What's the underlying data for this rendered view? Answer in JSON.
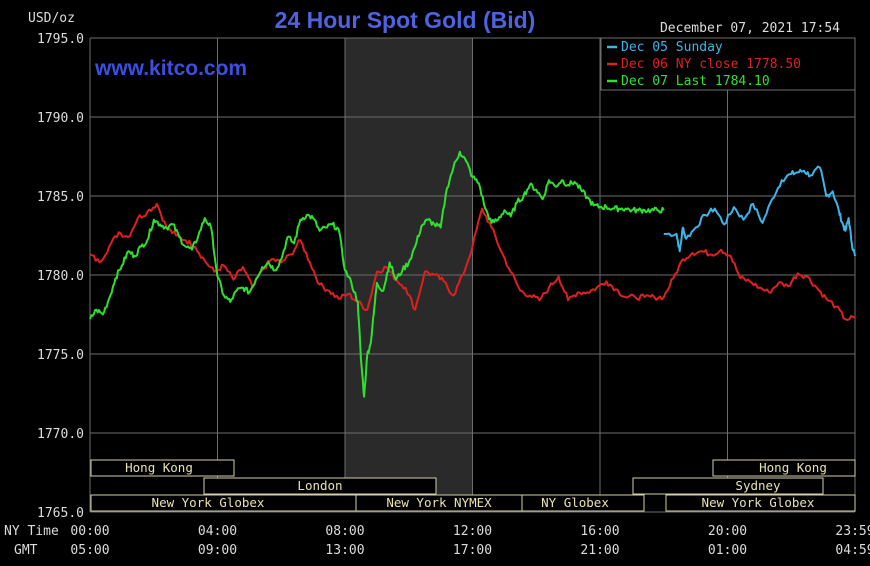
{
  "header": {
    "title": "24 Hour Spot Gold (Bid)",
    "units": "USD/oz",
    "timestamp": "December 07, 2021 17:54",
    "watermark": "www.kitco.com"
  },
  "legend": [
    {
      "label": "Dec 05 Sunday",
      "color": "#3bb5ea"
    },
    {
      "label": "Dec 06 NY close 1778.50",
      "color": "#e01f1f"
    },
    {
      "label": "Dec 07 Last 1784.10",
      "color": "#2fe02f"
    }
  ],
  "footer": {
    "ny_time_label": "NY Time",
    "gmt_label": "GMT",
    "ny_times": [
      "00:00",
      "04:00",
      "08:00",
      "12:00",
      "16:00",
      "20:00",
      "23:59"
    ],
    "gmt_times": [
      "05:00",
      "09:00",
      "13:00",
      "17:00",
      "21:00",
      "01:00",
      "04:59"
    ]
  },
  "sessions": {
    "hong_kong_left": "Hong Kong",
    "london": "London",
    "ny_globex_left": "New York Globex",
    "ny_nymex": "New York NYMEX",
    "ny_globex_mid": "NY Globex",
    "hong_kong_right": "Hong Kong",
    "sydney": "Sydney",
    "ny_globex_right": "New York Globex"
  },
  "colors": {
    "background": "#000000",
    "grid": "#6e6e6e",
    "title": "#4f63e0",
    "watermark": "#3e4fe0",
    "nymex_shade": "#2a2a2a",
    "session_box": "#d4cfa8"
  },
  "chart_data": {
    "type": "line",
    "title": "24 Hour Spot Gold (Bid)",
    "ylabel": "USD/oz",
    "xlabel": "NY Time",
    "ylim": [
      1765.0,
      1795.0
    ],
    "yticks": [
      "1765.0",
      "1770.0",
      "1775.0",
      "1780.0",
      "1785.0",
      "1790.0",
      "1795.0"
    ],
    "xlim": [
      0,
      24
    ],
    "xticks": [
      0,
      4,
      8,
      12,
      16,
      20,
      24
    ],
    "grid": true,
    "legend_position": "top-right",
    "shaded_region_hours": [
      8.0,
      12.0
    ],
    "series": [
      {
        "name": "Dec 05 Sunday",
        "color": "#3bb5ea",
        "x": [
          18.0,
          18.4,
          18.5,
          18.6,
          18.7,
          19.0,
          19.3,
          19.6,
          19.9,
          20.2,
          20.5,
          20.8,
          21.1,
          21.4,
          21.7,
          22.0,
          22.2,
          22.4,
          22.6,
          22.9,
          23.1,
          23.3,
          23.5,
          23.6,
          23.7,
          23.8,
          23.9,
          24.0
        ],
        "y": [
          1782.6,
          1782.6,
          1781.5,
          1783.0,
          1782.3,
          1783.0,
          1783.8,
          1784.2,
          1783.2,
          1784.3,
          1783.5,
          1784.5,
          1783.3,
          1784.8,
          1786.0,
          1786.4,
          1786.5,
          1786.6,
          1786.3,
          1786.8,
          1785.0,
          1785.3,
          1784.0,
          1783.3,
          1782.8,
          1783.6,
          1782.0,
          1781.2
        ]
      },
      {
        "name": "Dec 06 NY close 1778.50",
        "color": "#e01f1f",
        "x": [
          0.0,
          0.3,
          0.6,
          0.9,
          1.2,
          1.5,
          1.8,
          2.1,
          2.4,
          2.7,
          3.0,
          3.3,
          3.6,
          3.9,
          4.2,
          4.5,
          4.8,
          5.1,
          5.4,
          5.7,
          6.0,
          6.3,
          6.6,
          6.9,
          7.2,
          7.5,
          7.8,
          8.1,
          8.4,
          8.7,
          9.0,
          9.3,
          9.6,
          9.9,
          10.2,
          10.5,
          10.8,
          11.1,
          11.4,
          11.7,
          12.0,
          12.3,
          12.6,
          12.9,
          13.2,
          13.5,
          13.8,
          14.1,
          14.4,
          14.7,
          15.0,
          15.3,
          15.6,
          15.9,
          16.2,
          16.5,
          16.8,
          17.1,
          17.4,
          17.7,
          18.0,
          18.3,
          18.6,
          18.9,
          19.2,
          19.5,
          19.8,
          20.1,
          20.4,
          20.7,
          21.0,
          21.3,
          21.6,
          21.9,
          22.2,
          22.5,
          22.8,
          23.1,
          23.4,
          23.7,
          24.0
        ],
        "y": [
          1781.3,
          1780.8,
          1781.8,
          1782.7,
          1782.4,
          1783.6,
          1784.0,
          1784.5,
          1783.0,
          1782.5,
          1782.2,
          1781.8,
          1780.9,
          1780.2,
          1780.6,
          1779.7,
          1780.5,
          1779.2,
          1780.3,
          1781.0,
          1780.8,
          1781.3,
          1782.2,
          1780.8,
          1779.4,
          1779.0,
          1778.5,
          1778.8,
          1778.3,
          1777.8,
          1780.2,
          1780.5,
          1779.7,
          1779.2,
          1777.8,
          1780.2,
          1780.0,
          1779.6,
          1778.7,
          1780.0,
          1781.8,
          1784.2,
          1783.0,
          1781.5,
          1780.2,
          1779.0,
          1778.7,
          1778.4,
          1779.2,
          1779.9,
          1778.4,
          1778.9,
          1778.9,
          1779.2,
          1779.6,
          1779.1,
          1778.6,
          1778.6,
          1778.6,
          1778.6,
          1778.6,
          1779.8,
          1781.0,
          1781.4,
          1781.5,
          1781.3,
          1781.6,
          1781.2,
          1779.8,
          1779.6,
          1779.2,
          1778.9,
          1779.5,
          1779.3,
          1780.1,
          1779.9,
          1779.2,
          1778.5,
          1778.0,
          1777.2,
          1777.3
        ]
      },
      {
        "name": "Dec 07 Last 1784.10",
        "color": "#2fe02f",
        "x": [
          0.0,
          0.2,
          0.4,
          0.6,
          0.8,
          1.0,
          1.2,
          1.4,
          1.6,
          1.8,
          2.0,
          2.2,
          2.4,
          2.6,
          2.8,
          3.0,
          3.2,
          3.4,
          3.6,
          3.8,
          4.0,
          4.2,
          4.4,
          4.6,
          4.8,
          5.0,
          5.2,
          5.4,
          5.6,
          5.8,
          6.0,
          6.2,
          6.4,
          6.6,
          6.8,
          7.0,
          7.2,
          7.4,
          7.6,
          7.8,
          8.0,
          8.2,
          8.4,
          8.5,
          8.6,
          8.7,
          8.8,
          8.9,
          9.0,
          9.2,
          9.4,
          9.6,
          9.8,
          10.0,
          10.2,
          10.4,
          10.6,
          10.8,
          11.0,
          11.2,
          11.4,
          11.6,
          11.8,
          12.0,
          12.2,
          12.4,
          12.6,
          12.8,
          13.0,
          13.2,
          13.4,
          13.6,
          13.8,
          14.0,
          14.2,
          14.4,
          14.6,
          14.8,
          15.0,
          15.2,
          15.4,
          15.6,
          15.8,
          16.0,
          16.2,
          16.4,
          16.6,
          16.8,
          17.0,
          17.2,
          17.4,
          17.6,
          17.8,
          18.0
        ],
        "y": [
          1777.2,
          1777.8,
          1777.5,
          1778.5,
          1779.8,
          1780.6,
          1781.5,
          1781.2,
          1781.8,
          1782.2,
          1783.5,
          1783.2,
          1783.0,
          1783.2,
          1782.4,
          1781.8,
          1781.6,
          1782.5,
          1783.6,
          1783.0,
          1779.9,
          1778.7,
          1778.3,
          1779.0,
          1779.2,
          1778.9,
          1779.7,
          1780.5,
          1780.8,
          1780.3,
          1781.0,
          1782.4,
          1782.0,
          1783.5,
          1783.8,
          1783.6,
          1782.8,
          1783.0,
          1783.2,
          1782.9,
          1780.3,
          1779.5,
          1778.3,
          1774.7,
          1772.3,
          1775.0,
          1775.6,
          1777.5,
          1779.5,
          1779.0,
          1780.8,
          1779.7,
          1780.3,
          1780.8,
          1781.8,
          1783.1,
          1783.5,
          1783.2,
          1783.0,
          1785.5,
          1786.8,
          1787.8,
          1787.2,
          1786.2,
          1785.8,
          1784.2,
          1783.3,
          1783.5,
          1784.1,
          1783.7,
          1784.6,
          1785.0,
          1785.7,
          1785.4,
          1784.8,
          1786.0,
          1785.6,
          1786.0,
          1785.7,
          1785.9,
          1785.4,
          1784.9,
          1784.4,
          1784.3,
          1784.3,
          1784.2,
          1784.2,
          1784.2,
          1784.1,
          1784.1,
          1784.1,
          1784.1,
          1784.1,
          1784.1
        ]
      }
    ]
  }
}
